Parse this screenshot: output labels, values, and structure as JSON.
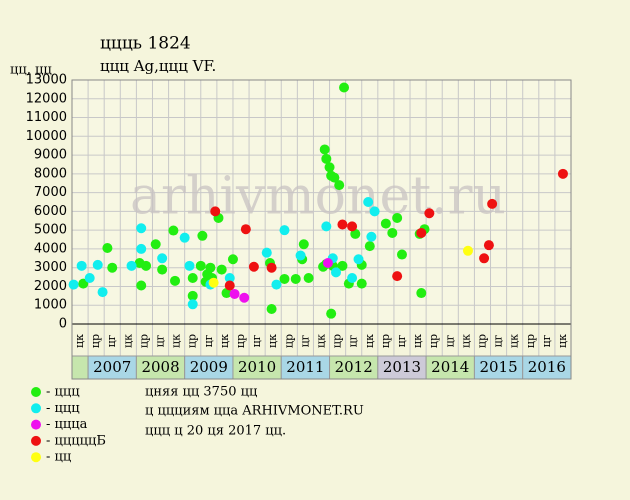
{
  "chart_data": {
    "type": "scatter",
    "title": "ццць 1824",
    "subtitle": "ццц Ag,ццц VF.",
    "y_label": "цц, цц",
    "watermark": "arhivmonet.ru",
    "xlim": [
      0,
      31
    ],
    "ylim": [
      0,
      13000
    ],
    "yticks": [
      0,
      1000,
      2000,
      3000,
      4000,
      5000,
      6000,
      7000,
      8000,
      9000,
      10000,
      11000,
      12000,
      13000
    ],
    "grid": true,
    "period_labels": [
      "цк",
      "цр",
      "цг",
      "цк",
      "цр",
      "цг",
      "цк",
      "цр",
      "цг",
      "цк",
      "цр",
      "цг",
      "цк",
      "цр",
      "цг",
      "цк",
      "цр",
      "цг",
      "цк",
      "цр",
      "цг",
      "цк",
      "цр",
      "цг",
      "цк",
      "цр",
      "цг",
      "цк",
      "цр",
      "цг",
      "цк"
    ],
    "years": [
      "2007",
      "2008",
      "2009",
      "2010",
      "2011",
      "2012",
      "2013",
      "2014",
      "2015",
      "2016"
    ],
    "year_colors": [
      "#a9d7e6",
      "#c6e6ad",
      "#a9d7e6",
      "#c6e6ad",
      "#a9d7e6",
      "#c6e6ad",
      "#cdcad8",
      "#c6e6ad",
      "#a9d7e6",
      "#a9d7e6"
    ],
    "lead_color": "#c6e6ad",
    "notes": [
      "цняя цц 3750 цц",
      "ц ццциям цца ARHIVMONET.RU",
      "ццц ц 20 ця 2017 цц."
    ],
    "series": [
      {
        "name": "- ццц",
        "color": "#22ee11",
        "x": [
          0.7,
          2.2,
          2.5,
          4.2,
          4.3,
          4.6,
          5.2,
          5.6,
          6.3,
          6.4,
          7.5,
          7.5,
          8.0,
          8.1,
          8.3,
          8.4,
          8.6,
          8.7,
          9.1,
          9.3,
          9.6,
          10.0,
          12.3,
          12.4,
          13.2,
          13.9,
          14.3,
          14.4,
          14.7,
          15.7,
          15.8,
          16.0,
          16.1,
          16.3,
          16.6,
          16.9,
          15.6,
          15.8,
          16.2,
          16.1,
          16.8,
          17.2,
          17.6,
          18.0,
          18.0,
          18.5,
          19.5,
          19.9,
          20.2,
          20.5,
          21.6,
          21.7,
          21.9
        ],
        "values": [
          2150,
          4050,
          3000,
          3250,
          2050,
          3100,
          4250,
          2900,
          4980,
          2300,
          2450,
          1500,
          3100,
          4700,
          2250,
          2650,
          3000,
          2450,
          5650,
          2900,
          1650,
          3450,
          3250,
          800,
          2400,
          2400,
          3450,
          4250,
          2450,
          9300,
          8800,
          8350,
          7900,
          7800,
          7400,
          12600,
          3050,
          3200,
          3100,
          550,
          3100,
          2150,
          4800,
          3150,
          2150,
          4150,
          5350,
          4850,
          5650,
          3700,
          4800,
          1650,
          5050
        ]
      },
      {
        "name": "- ццц",
        "color": "#11eeee",
        "x": [
          0.1,
          0.6,
          1.1,
          1.6,
          1.9,
          3.7,
          4.3,
          4.3,
          5.6,
          7.0,
          7.3,
          7.5,
          8.6,
          9.8,
          12.1,
          12.7,
          13.2,
          14.2,
          15.8,
          16.2,
          16.4,
          17.4,
          17.8,
          18.4,
          18.8,
          18.6
        ],
        "values": [
          2100,
          3100,
          2450,
          3150,
          1700,
          3100,
          5100,
          4000,
          3500,
          4600,
          3100,
          1050,
          2100,
          2450,
          3800,
          2100,
          5000,
          3650,
          5200,
          3500,
          2750,
          2450,
          3450,
          6500,
          6000,
          4650
        ]
      },
      {
        "name": "- ццца",
        "color": "#ee11ee",
        "x": [
          10.1,
          10.7,
          15.9
        ],
        "values": [
          1600,
          1400,
          3250
        ]
      },
      {
        "name": "- цццццБ",
        "color": "#ee1111",
        "x": [
          8.9,
          9.8,
          10.8,
          11.3,
          12.4,
          16.8,
          17.4,
          20.2,
          21.7,
          22.2,
          25.6,
          25.9,
          26.1,
          30.5
        ],
        "values": [
          6000,
          2050,
          5050,
          3050,
          3000,
          5300,
          5200,
          2550,
          4850,
          5900,
          3500,
          4200,
          6400,
          8000
        ]
      },
      {
        "name": "- цц",
        "color": "#ffff11",
        "x": [
          8.8,
          24.6
        ],
        "values": [
          2200,
          3900
        ]
      }
    ]
  }
}
